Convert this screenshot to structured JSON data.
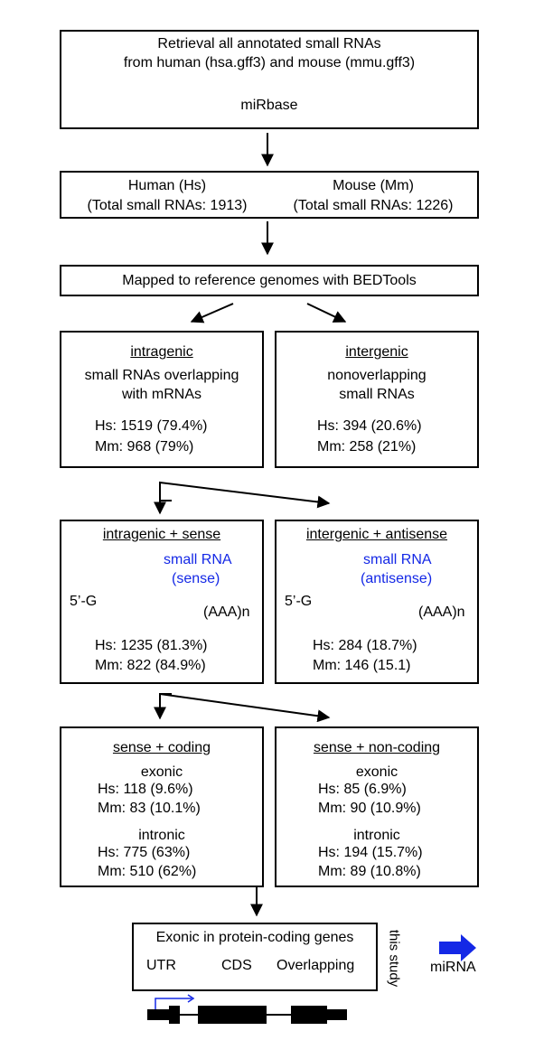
{
  "step1": {
    "line1": "Retrieval all annotated small RNAs",
    "line2": "from human (hsa.gff3) and mouse (mmu.gff3)",
    "db": "miRbase"
  },
  "step2": {
    "human_title": "Human (Hs)",
    "human_total": "(Total small RNAs: 1913)",
    "mouse_title": "Mouse (Mm)",
    "mouse_total": "(Total small RNAs: 1226)"
  },
  "step3": {
    "text": "Mapped to reference genomes with BEDTools"
  },
  "intragenic": {
    "title": "intragenic",
    "desc1": "small RNAs overlapping",
    "desc2": "with mRNAs",
    "hs": "Hs: 1519 (79.4%)",
    "mm": "Mm: 968 (79%)"
  },
  "intergenic": {
    "title": "intergenic",
    "desc1": "nonoverlapping",
    "desc2": "small RNAs",
    "hs": "Hs: 394 (20.6%)",
    "mm": "Mm: 258 (21%)"
  },
  "sense": {
    "title": "intragenic + sense",
    "label1": "small RNA",
    "label2": "(sense)",
    "five_prime": "5’-G",
    "polya": "(AAA)n",
    "hs": "Hs: 1235 (81.3%)",
    "mm": "Mm: 822 (84.9%)"
  },
  "antisense": {
    "title": "intergenic + antisense",
    "label1": "small RNA",
    "label2": "(antisense)",
    "five_prime": "5’-G",
    "polya": "(AAA)n",
    "hs": "Hs: 284 (18.7%)",
    "mm": "Mm: 146 (15.1)"
  },
  "coding": {
    "title": "sense + coding",
    "exonic": "exonic",
    "exonic_hs": "Hs: 118 (9.6%)",
    "exonic_mm": "Mm: 83 (10.1%)",
    "intronic": "intronic",
    "intronic_hs": "Hs: 775 (63%)",
    "intronic_mm": "Mm: 510 (62%)"
  },
  "noncoding": {
    "title": "sense + non-coding",
    "exonic": "exonic",
    "exonic_hs": "Hs: 85 (6.9%)",
    "exonic_mm": "Mm: 90 (10.9%)",
    "intronic": "intronic",
    "intronic_hs": "Hs: 194 (15.7%)",
    "intronic_mm": "Mm: 89 (10.8%)"
  },
  "final": {
    "title": "Exonic in protein-coding genes",
    "categories": [
      "UTR",
      "CDS",
      "Overlapping"
    ],
    "side_label": "this study"
  },
  "legend": {
    "label": "miRNA",
    "arrow_color": "#1428e6"
  },
  "colors": {
    "accent_blue": "#1428e6",
    "db_fill": "#c8c8c8"
  }
}
